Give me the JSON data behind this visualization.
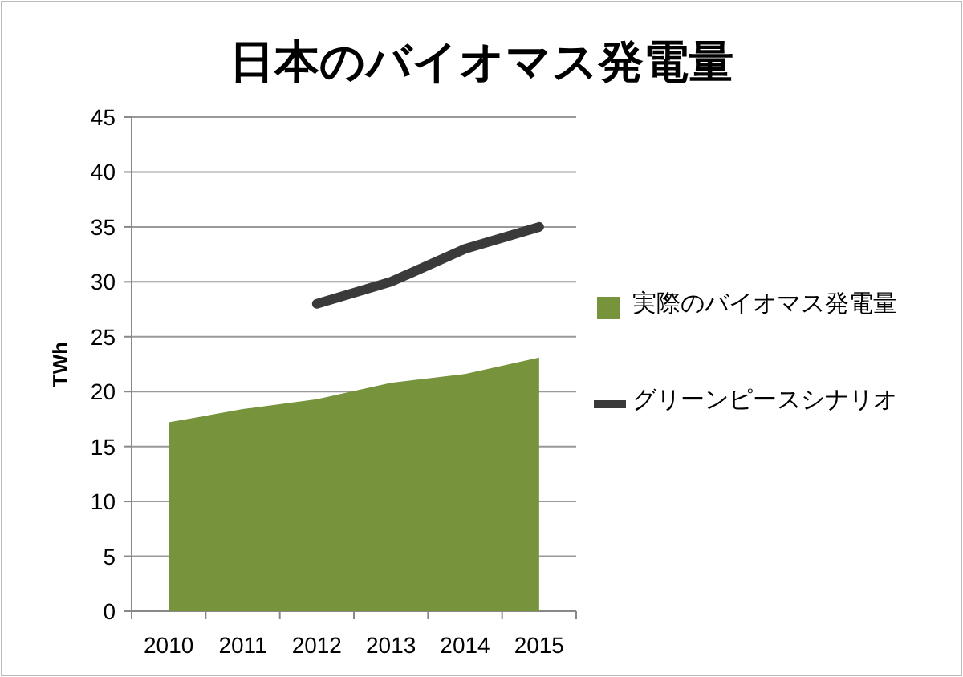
{
  "chart_data": {
    "type": "area",
    "title": "日本のバイオマス発電量",
    "ylabel": "TWh",
    "categories": [
      "2010",
      "2011",
      "2012",
      "2013",
      "2014",
      "2015"
    ],
    "series": [
      {
        "name": "実際のバイオマス発電量",
        "color": "#77933c",
        "values": [
          17.2,
          18.4,
          19.3,
          20.8,
          21.6,
          23.1
        ]
      },
      {
        "name": "グリーンピースシナリオ",
        "type": "line",
        "color": "#3a3a3a",
        "values": [
          null,
          null,
          28,
          30,
          33,
          35
        ]
      }
    ],
    "ylim": [
      0,
      45
    ],
    "yticks": [
      0,
      5,
      10,
      15,
      20,
      25,
      30,
      35,
      40,
      45
    ],
    "grid": "y",
    "legend": "right"
  }
}
